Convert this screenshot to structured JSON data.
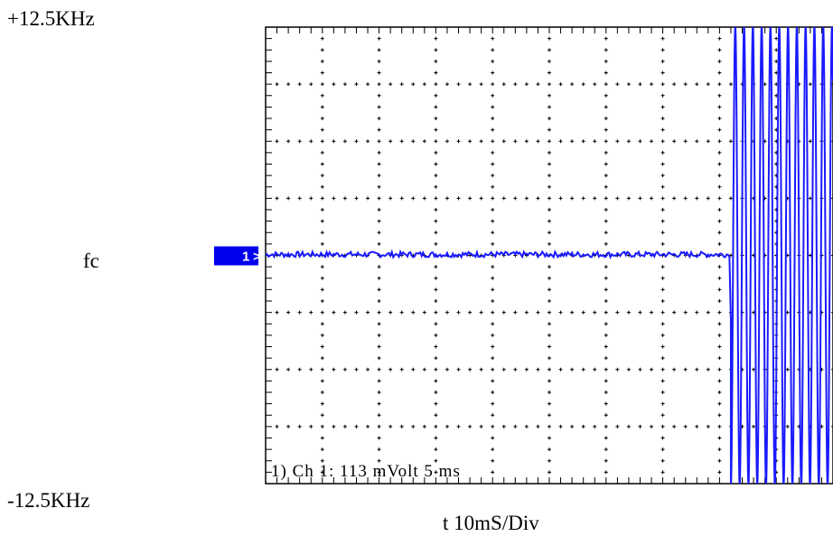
{
  "chart_data": {
    "type": "line",
    "title": "",
    "y_top_label": "+12.5KHz",
    "y_center_label": "fc",
    "y_bottom_label": "-12.5KHz",
    "xlabel": "t 10mS/Div",
    "ylim": [
      -12.5,
      12.5
    ],
    "y_units": "KHz",
    "x_divisions": 10,
    "y_divisions": 8,
    "x_ms_per_div": 10,
    "grid": true,
    "channel_marker": "1",
    "footer": "1) Ch 1:   113 mVolt  5 ms",
    "trace_color": "#1a1aff",
    "marker_color": "#0000ee",
    "series": [
      {
        "flat_until_ms": 82,
        "flat_level_khz": 0.05,
        "oscillation": {
          "start_ms": 82,
          "period_ms": 1.55,
          "amplitude_khz": 12.6,
          "initial_dip_khz": -3.6
        }
      }
    ]
  }
}
